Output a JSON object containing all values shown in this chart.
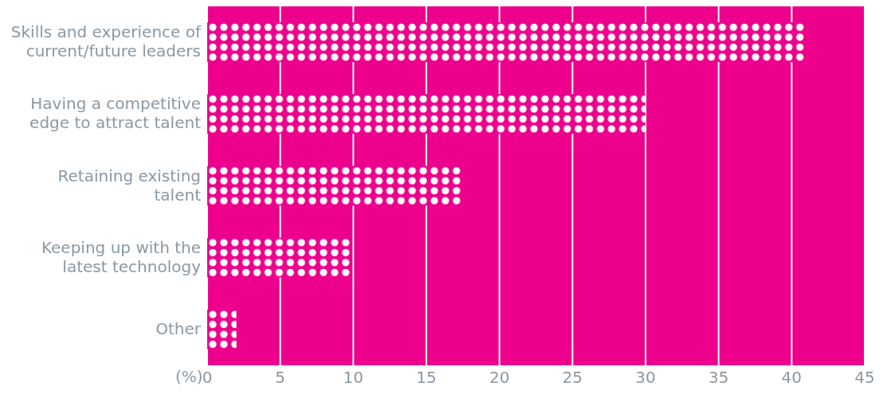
{
  "chart_data": {
    "type": "bar",
    "orientation": "horizontal",
    "xlabel": "(%)",
    "categories": [
      "Skills and experience of current/future leaders",
      "Having a competitive edge to attract talent",
      "Retaining existing talent",
      "Keeping up with the latest technology",
      "Other"
    ],
    "values": [
      41,
      30,
      17.4,
      9.8,
      2
    ],
    "color": "#ffffff",
    "xlim": [
      0,
      45
    ],
    "xticks": [
      0,
      5,
      10,
      15,
      20,
      25,
      30,
      35,
      40,
      45
    ],
    "grid": "x"
  }
}
